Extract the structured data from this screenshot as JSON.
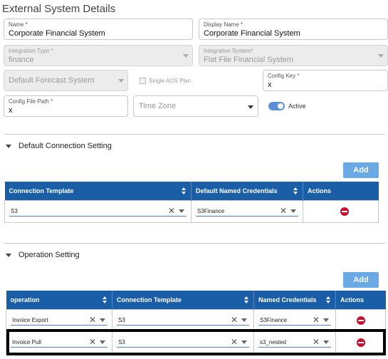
{
  "page": {
    "title": "External System Details"
  },
  "form": {
    "name": {
      "label": "Name *",
      "value": "Corporate Financial System"
    },
    "display_name": {
      "label": "Display Name *",
      "value": "Corporate Financial System"
    },
    "integration_type": {
      "label": "Integration Type *",
      "value": "finance"
    },
    "integration_system": {
      "label": "Integration System*",
      "value": "Flat File Financial System"
    },
    "forecast_system": {
      "value": "Default Forecast System"
    },
    "single_aos_plan": {
      "label": "Single AOS Plan",
      "checked": false
    },
    "config_key": {
      "label": "Config Key *",
      "value": "x"
    },
    "config_file_path": {
      "label": "Config File Path *",
      "value": "x"
    },
    "time_zone": {
      "placeholder": "Time Zone"
    },
    "active": {
      "label": "Active",
      "on": true
    }
  },
  "default_connection": {
    "title": "Default Connection Setting",
    "add_label": "Add",
    "columns": [
      "Connection Template",
      "Default Named Credentials",
      "Actions"
    ],
    "rows": [
      {
        "template": "S3",
        "credentials": "S3Finance"
      }
    ]
  },
  "operation_setting": {
    "title": "Operation Setting",
    "add_label": "Add",
    "columns": [
      "operation",
      "Connection Template",
      "Named Credentials",
      "Actions"
    ],
    "rows": [
      {
        "operation": "Invoice Export",
        "template": "S3",
        "credentials": "S3Finance"
      },
      {
        "operation": "Invoice Pull",
        "template": "S3",
        "credentials": "s3_nested"
      }
    ]
  },
  "colors": {
    "header_blue": "#1b5ea8",
    "add_button": "#6ba9e5",
    "toggle_on": "#5a8dd6",
    "delete_red": "#c8102e"
  }
}
